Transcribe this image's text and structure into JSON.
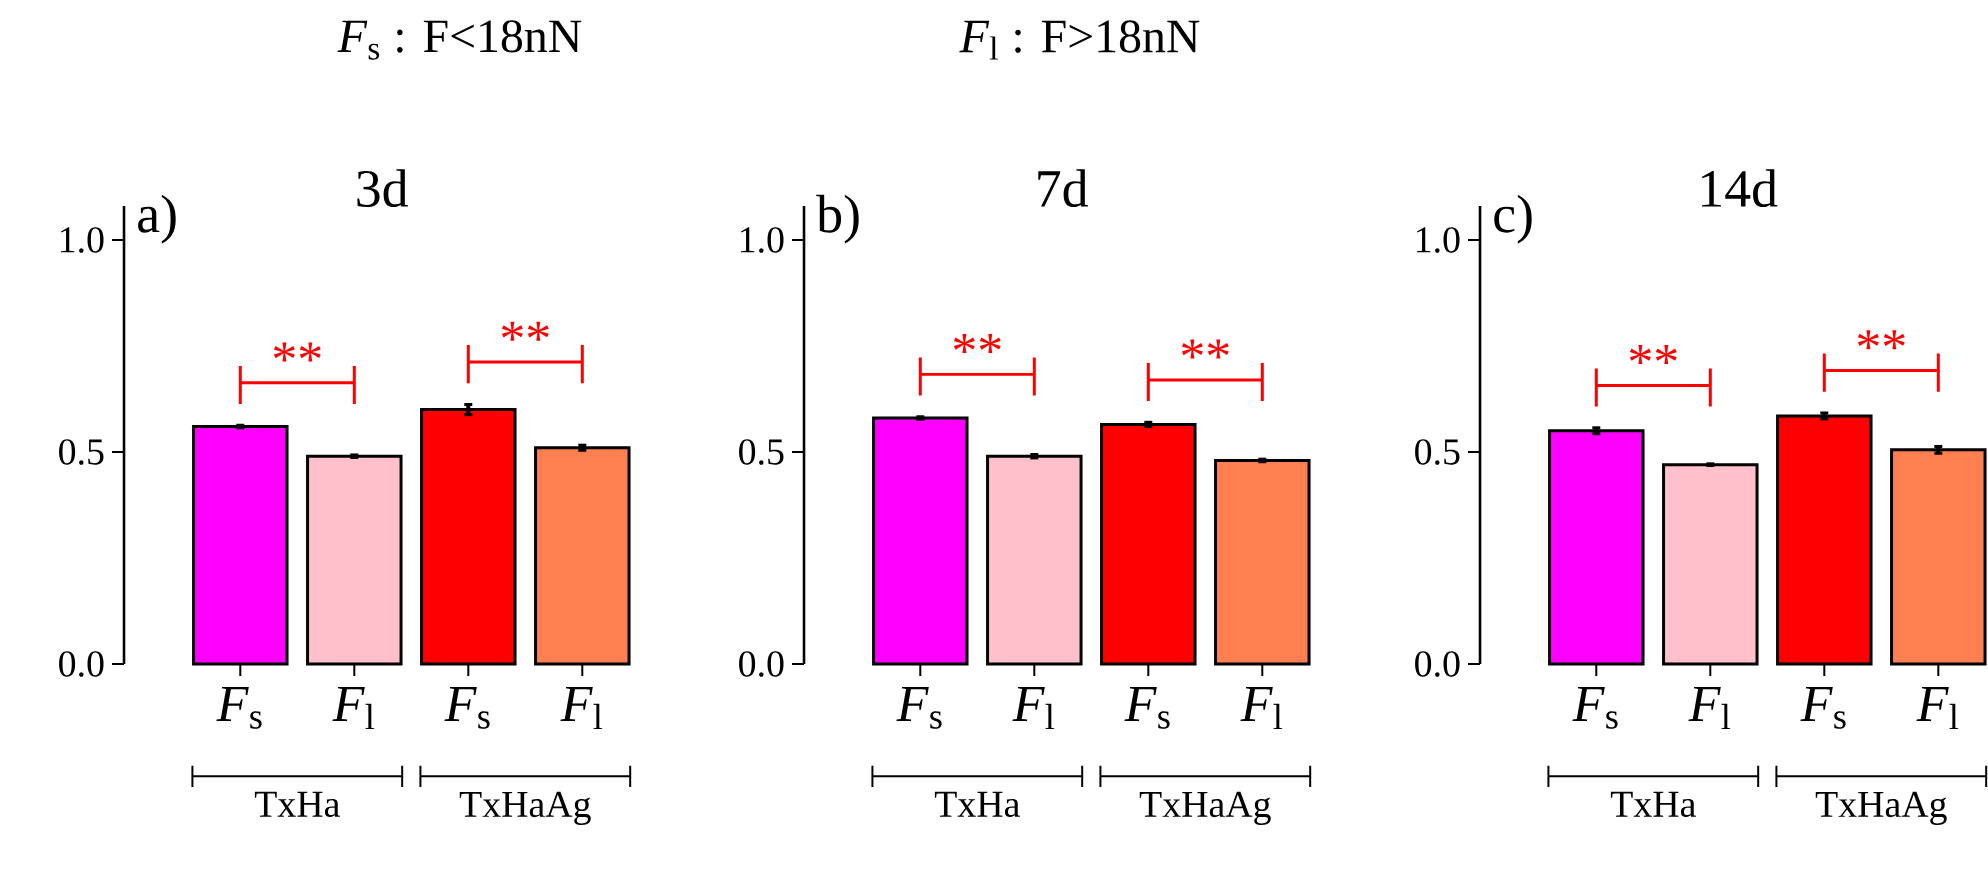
{
  "chart_data": [
    {
      "type": "bar",
      "title": "3d",
      "categories": [
        "*F*$_{s}$",
        "*F*$_{l}$",
        "*F*$_{s}$",
        "*F*$_{l}$"
      ],
      "values": [
        0.56,
        0.49,
        0.6,
        0.51
      ],
      "errors": [
        0.003,
        0.003,
        0.012,
        0.006
      ],
      "colors": [
        "#ff00ff",
        "#ffc0cb",
        "#ff0000",
        "#ff7f50"
      ],
      "ylim": [
        0,
        1.08
      ],
      "yticks": [
        {
          "value": 0,
          "label": "0.0"
        },
        {
          "value": 0.5,
          "label": "0.5"
        },
        {
          "value": 1,
          "label": "1.0"
        }
      ],
      "annotations": [
        "a)",
        "**",
        "**",
        "TxHa",
        "TxHaAg",
        "*F*$_{s}$ : F<18nN",
        "*F*$_{l}$ : F>18nN"
      ]
    },
    {
      "type": "bar",
      "title": "7d",
      "categories": [
        "*F*$_{s}$",
        "*F*$_{l}$",
        "*F*$_{s}$",
        "*F*$_{l}$"
      ],
      "values": [
        0.58,
        0.49,
        0.565,
        0.48
      ],
      "errors": [
        0.003,
        0.004,
        0.005,
        0.003
      ],
      "colors": [
        "#ff00ff",
        "#ffc0cb",
        "#ff0000",
        "#ff7f50"
      ],
      "ylim": [
        0,
        1.08
      ],
      "yticks": [
        {
          "value": 0,
          "label": "0.0"
        },
        {
          "value": 0.5,
          "label": "0.5"
        },
        {
          "value": 1,
          "label": "1.0"
        }
      ],
      "annotations": [
        "b)",
        "**",
        "**",
        "TxHa",
        "TxHaAg"
      ]
    },
    {
      "type": "bar",
      "title": "14d",
      "categories": [
        "*F*$_{s}$",
        "*F*$_{l}$",
        "*F*$_{s}$",
        "*F*$_{l}$"
      ],
      "values": [
        0.55,
        0.47,
        0.585,
        0.505
      ],
      "errors": [
        0.007,
        0.002,
        0.007,
        0.008
      ],
      "colors": [
        "#ff00ff",
        "#ffc0cb",
        "#ff0000",
        "#ff7f50"
      ],
      "ylim": [
        0,
        1.08
      ],
      "yticks": [
        {
          "value": 0,
          "label": "0.0"
        },
        {
          "value": 0.5,
          "label": "0.5"
        },
        {
          "value": 1,
          "label": "1.0"
        }
      ],
      "annotations": [
        "c)",
        "**",
        "**",
        "TxHa",
        "TxHaAg"
      ]
    }
  ]
}
